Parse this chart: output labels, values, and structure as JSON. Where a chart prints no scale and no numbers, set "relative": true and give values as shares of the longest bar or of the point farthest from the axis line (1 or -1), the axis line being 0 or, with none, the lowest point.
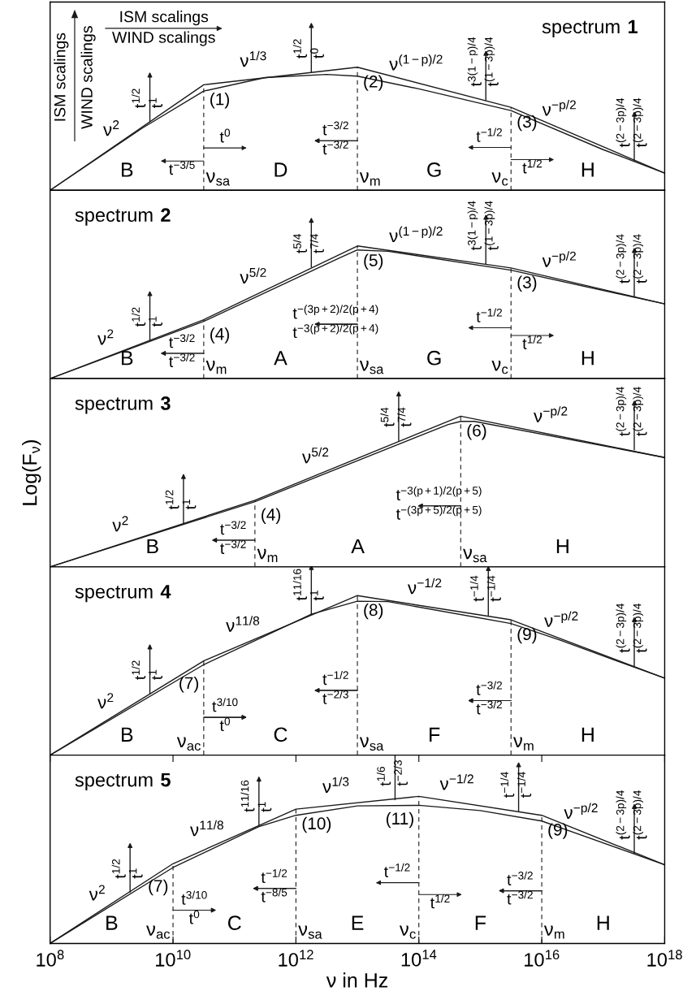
{
  "chart_data": [
    {
      "type": "line",
      "title": "spectrum 1",
      "relative": true,
      "log": "x",
      "xlim": [
        100000000.0,
        1e+18
      ],
      "tick_labels": false,
      "series": [
        {
          "color": "#1a1a1a",
          "x": [
            100000000.0,
            31600000000.0,
            10000000000000.0,
            3160000000000000.0,
            1e+18
          ],
          "values": [
            0,
            0.857,
            1,
            0.674,
            0.139
          ]
        },
        {
          "color": "#1a1a1a",
          "x": [
            100000000.0,
            3160000000.0,
            31600000000.0,
            316000000000.0,
            3160000000000.0,
            10000000000000.0,
            100000000000000.0,
            3160000000000000.0,
            1e+17,
            1e+18
          ],
          "values": [
            0,
            0.505,
            0.806,
            0.916,
            0.941,
            0.927,
            0.824,
            0.648,
            0.33,
            0.139
          ]
        }
      ],
      "ref_lines": [
        {
          "axis": "x",
          "value": 31600000000.0,
          "label": "ν$_{sa}$",
          "line_style": "dashed"
        },
        {
          "axis": "x",
          "value": 10000000000000.0,
          "label": "ν$_{m}$",
          "line_style": "dashed"
        },
        {
          "axis": "x",
          "value": 3160000000000000.0,
          "label": "ν$_{c}$",
          "line_style": "dashed"
        }
      ],
      "annotations": [
        "ISM scalings",
        "WIND scalings",
        "ISM scalings",
        "WIND scalings",
        {
          "text": "ν$^{2}$",
          "x": 1000000000.0,
          "y": 0.343
        },
        {
          "text": "ν$^{1/3}$",
          "x": 204000000000.0,
          "y": 0.903
        },
        {
          "text": "ν$^{(1−p)/2}$",
          "x": 91000000000000.0,
          "y": 0.875
        },
        {
          "text": "ν$^{−p/2}$",
          "x": 1.95e+16,
          "y": 0.505
        },
        {
          "text": "(1)",
          "x": 31600000000.0,
          "y": 0.857
        },
        {
          "text": "(2)",
          "x": 10000000000000.0,
          "y": 1
        },
        {
          "text": "(3)",
          "x": 3160000000000000.0,
          "y": 0.674
        },
        "B",
        "D",
        "G",
        "H",
        {
          "text": "t$^{1/2}$",
          "x": 4200000000.0,
          "y": 0.557
        },
        {
          "text": "t$^{1}$",
          "x": 4200000000.0,
          "y": 0.557
        },
        {
          "text": "t$^{1/2}$",
          "x": 1780000000000.0,
          "y": 0.96
        },
        {
          "text": "t$^{0}$",
          "x": 1780000000000.0,
          "y": 0.96
        },
        {
          "text": "t$^{3(1−p)/4}$",
          "x": 1230000000000000.0,
          "y": 0.733
        },
        {
          "text": "t$^{(1−3p)/4}$",
          "x": 1230000000000000.0,
          "y": 0.733
        },
        {
          "text": "t$^{(2−3p)/4}$",
          "x": 3.2e+17,
          "y": 0.238
        },
        {
          "text": "t$^{(2−3p)/4}$",
          "x": 3.2e+17,
          "y": 0.238
        },
        {
          "text": "t$^{0}$",
          "x": 31600000000.0,
          "y": 0.344
        },
        {
          "text": "t$^{−3/5}$",
          "x": 31600000000.0,
          "y": 0.238
        },
        {
          "text": "t$^{−3/2}$",
          "x": 10000000000000.0,
          "y": 0.403
        },
        {
          "text": "t$^{−3/2}$",
          "x": 10000000000000.0,
          "y": 0.403
        },
        {
          "text": "t$^{−1/2}$",
          "x": 3160000000000000.0,
          "y": 0.348
        },
        {
          "text": "t$^{1/2}$",
          "x": 3160000000000000.0,
          "y": 0.249
        }
      ]
    },
    {
      "type": "line",
      "title": "spectrum 2",
      "relative": true,
      "log": "x",
      "xlim": [
        100000000.0,
        1e+18
      ],
      "tick_labels": false,
      "series": [
        {
          "color": "#1a1a1a",
          "x": [
            100000000.0,
            31600000000.0,
            10000000000000.0,
            3160000000000000.0,
            1e+18
          ],
          "values": [
            0,
            0.444,
            1,
            0.834,
            0.563
          ]
        },
        {
          "color": "#1a1a1a",
          "x": [
            100000000.0,
            31600000000.0,
            5000000000000.0,
            10000000000000.0,
            31600000000000.0,
            3160000000000000.0,
            1e+18
          ],
          "values": [
            0,
            0.431,
            0.908,
            0.97,
            0.96,
            0.817,
            0.563
          ]
        }
      ],
      "ref_lines": [
        {
          "axis": "x",
          "value": 31600000000.0,
          "label": "ν$_{m}$",
          "line_style": "dashed"
        },
        {
          "axis": "x",
          "value": 10000000000000.0,
          "label": "ν$_{sa}$",
          "line_style": "dashed"
        },
        {
          "axis": "x",
          "value": 3160000000000000.0,
          "label": "ν$_{c}$",
          "line_style": "dashed"
        }
      ],
      "annotations": [
        {
          "text": "ν$^{2}$",
          "x": 810000000.0,
          "y": 0.162
        },
        {
          "text": "ν$^{5/2}$",
          "x": 204000000000.0,
          "y": 0.624
        },
        {
          "text": "ν$^{(1−p)/2}$",
          "x": 91000000000000.0,
          "y": 0.936
        },
        {
          "text": "ν$^{−p/2}$",
          "x": 1.95e+16,
          "y": 0.748
        },
        {
          "text": "(4)",
          "x": 31600000000.0,
          "y": 0.444
        },
        {
          "text": "(5)",
          "x": 10000000000000.0,
          "y": 1
        },
        {
          "text": "(3)",
          "x": 3160000000000000.0,
          "y": 0.834
        },
        "B",
        "A",
        "G",
        "H",
        {
          "text": "t$^{1/2}$",
          "x": 4200000000.0,
          "y": 0.288
        },
        {
          "text": "t$^{1}$",
          "x": 4200000000.0,
          "y": 0.288
        },
        {
          "text": "t$^{5/4}$",
          "x": 1780000000000.0,
          "y": 0.841
        },
        {
          "text": "t$^{7/4}$",
          "x": 1780000000000.0,
          "y": 0.841
        },
        {
          "text": "t$^{3(1−p)/4}$",
          "x": 1230000000000000.0,
          "y": 0.864
        },
        {
          "text": "t$^{(1−3p)/4}$",
          "x": 1230000000000000.0,
          "y": 0.864
        },
        {
          "text": "t$^{(2−3p)/4}$",
          "x": 3.2e+17,
          "y": 0.614
        },
        {
          "text": "t$^{(2−3p)/4}$",
          "x": 3.2e+17,
          "y": 0.614
        },
        {
          "text": "t$^{−3/2}$",
          "x": 31600000000.0,
          "y": 0.19
        },
        {
          "text": "t$^{−3/2}$",
          "x": 31600000000.0,
          "y": 0.19
        },
        {
          "text": "t$^{−(3p+2)/2(p+4)}$",
          "x": 10000000000000.0,
          "y": 0.41
        },
        {
          "text": "t$^{−3(p+2)/2(p+4)}$",
          "x": 10000000000000.0,
          "y": 0.41
        },
        {
          "text": "t$^{−1/2}$",
          "x": 3160000000000000.0,
          "y": 0.383
        },
        {
          "text": "t$^{1/2}$",
          "x": 3160000000000000.0,
          "y": 0.325
        }
      ]
    },
    {
      "type": "line",
      "title": "spectrum 3",
      "ylabel": "Log(F$_{ν}$)",
      "relative": true,
      "log": "x",
      "xlim": [
        100000000.0,
        1e+18
      ],
      "tick_labels": false,
      "series": [
        {
          "color": "#1a1a1a",
          "x": [
            100000000.0,
            215000000000.0,
            480000000000000.0,
            1e+18
          ],
          "values": [
            0,
            0.442,
            1,
            0.726
          ]
        },
        {
          "color": "#1a1a1a",
          "x": [
            100000000.0,
            215000000000.0,
            300000000000000.0,
            480000000000000.0,
            800000000000000.0,
            1e+18
          ],
          "values": [
            0,
            0.433,
            0.945,
            0.966,
            0.966,
            0.726
          ]
        }
      ],
      "ref_lines": [
        {
          "axis": "x",
          "value": 215000000000.0,
          "label": "ν$_{m}$",
          "line_style": "dashed"
        },
        {
          "axis": "x",
          "value": 480000000000000.0,
          "label": "ν$_{sa}$",
          "line_style": "dashed"
        }
      ],
      "annotations": [
        {
          "text": "ν$^{2}$",
          "x": 1410000000.0,
          "y": 0.153
        },
        {
          "text": "ν$^{5/2}$",
          "x": 2100000000000.0,
          "y": 0.607
        },
        {
          "text": "ν$^{−p/2}$",
          "x": 1.41e+16,
          "y": 0.879
        },
        {
          "text": "(4)",
          "x": 215000000000.0,
          "y": 0.442
        },
        {
          "text": "(6)",
          "x": 480000000000000.0,
          "y": 1
        },
        "B",
        "A",
        "H",
        {
          "text": "t$^{1/2}$",
          "x": 14800000000.0,
          "y": 0.29
        },
        {
          "text": "t$^{1}$",
          "x": 14800000000.0,
          "y": 0.29
        },
        {
          "text": "t$^{5/4}$",
          "x": 47000000000000.0,
          "y": 0.838
        },
        {
          "text": "t$^{7/4}$",
          "x": 47000000000000.0,
          "y": 0.838
        },
        {
          "text": "t$^{(2−3p)/4}$",
          "x": 3.2e+17,
          "y": 0.777
        },
        {
          "text": "t$^{(2−3p)/4}$",
          "x": 3.2e+17,
          "y": 0.777
        },
        {
          "text": "t$^{−3/2}$",
          "x": 215000000000.0,
          "y": 0.177
        },
        {
          "text": "t$^{−3/2}$",
          "x": 215000000000.0,
          "y": 0.177
        },
        {
          "text": "t$^{−3(p+1)/2(p+5)}$",
          "x": 480000000000000.0,
          "y": 0.405
        },
        {
          "text": "t$^{−(3p+5)/2(p+5)}$",
          "x": 480000000000000.0,
          "y": 0.405
        }
      ]
    },
    {
      "type": "line",
      "title": "spectrum 4",
      "relative": true,
      "log": "x",
      "xlim": [
        100000000.0,
        1e+18
      ],
      "tick_labels": false,
      "series": [
        {
          "color": "#1a1a1a",
          "x": [
            100000000.0,
            31600000000.0,
            10000000000000.0,
            3160000000000000.0,
            1e+18
          ],
          "values": [
            0,
            0.591,
            1,
            0.848,
            0.482
          ]
        },
        {
          "color": "#1a1a1a",
          "x": [
            100000000.0,
            31600000000.0,
            1780000000000.0,
            10000000000000.0,
            31600000000000.0,
            3160000000000000.0,
            2e+16,
            1e+18
          ],
          "values": [
            0,
            0.567,
            0.883,
            0.965,
            0.962,
            0.825,
            0.72,
            0.482
          ]
        }
      ],
      "ref_lines": [
        {
          "axis": "x",
          "value": 31600000000.0,
          "label": "ν$_{ac}$",
          "line_style": "dashed"
        },
        {
          "axis": "x",
          "value": 10000000000000.0,
          "label": "ν$_{sa}$",
          "line_style": "dashed"
        },
        {
          "axis": "x",
          "value": 3160000000000000.0,
          "label": "ν$_{m}$",
          "line_style": "dashed"
        }
      ],
      "annotations": [
        {
          "text": "ν$^{2}$",
          "x": 810000000.0,
          "y": 0.215
        },
        {
          "text": "ν$^{11/8}$",
          "x": 138000000000.0,
          "y": 0.696
        },
        {
          "text": "ν$^{−1/2}$",
          "x": 126000000000000.0,
          "y": 0.933
        },
        {
          "text": "ν$^{−p/2}$",
          "x": 2.1e+16,
          "y": 0.726
        },
        {
          "text": "(7)",
          "x": 31600000000.0,
          "y": 0.591
        },
        {
          "text": "(8)",
          "x": 10000000000000.0,
          "y": 1
        },
        {
          "text": "(9)",
          "x": 3160000000000000.0,
          "y": 0.848
        },
        "B",
        "C",
        "F",
        "H",
        {
          "text": "t$^{1/2}$",
          "x": 4200000000.0,
          "y": 0.386
        },
        {
          "text": "t$^{1}$",
          "x": 4200000000.0,
          "y": 0.386
        },
        {
          "text": "t$^{11/16}$",
          "x": 1780000000000.0,
          "y": 0.883
        },
        {
          "text": "t$^{1}$",
          "x": 1780000000000.0,
          "y": 0.883
        },
        {
          "text": "t$^{−1/4}$",
          "x": 1350000000000000.0,
          "y": 0.877
        },
        {
          "text": "t$^{−1/4}$",
          "x": 1350000000000000.0,
          "y": 0.877
        },
        {
          "text": "t$^{(2−3p)/4}$",
          "x": 3.2e+17,
          "y": 0.556
        },
        {
          "text": "t$^{(2−3p)/4}$",
          "x": 3.2e+17,
          "y": 0.556
        },
        {
          "text": "t$^{3/10}$",
          "x": 31600000000.0,
          "y": 0.237
        },
        {
          "text": "t$^{0}$",
          "x": 31600000000.0,
          "y": 0.237
        },
        {
          "text": "t$^{−1/2}$",
          "x": 10000000000000.0,
          "y": 0.406
        },
        {
          "text": "t$^{−2/3}$",
          "x": 10000000000000.0,
          "y": 0.406
        },
        {
          "text": "t$^{−3/2}$",
          "x": 3160000000000000.0,
          "y": 0.342
        },
        {
          "text": "t$^{−3/2}$",
          "x": 3160000000000000.0,
          "y": 0.342
        }
      ]
    },
    {
      "type": "line",
      "title": "spectrum 5",
      "xlabel": "ν in Hz",
      "relative": true,
      "log": "x",
      "xlim": [
        100000000.0,
        1e+18
      ],
      "xticks": [
        {
          "value": 100000000.0,
          "label": "10$^{8}$"
        },
        {
          "value": 10000000000.0,
          "label": "10$^{10}$"
        },
        {
          "value": 1000000000000.0,
          "label": "10$^{12}$"
        },
        {
          "value": 100000000000000.0,
          "label": "10$^{14}$"
        },
        {
          "value": 1e+16,
          "label": "10$^{16}$"
        },
        {
          "value": 1e+18,
          "label": "10$^{18}$"
        }
      ],
      "series": [
        {
          "color": "#1a1a1a",
          "x": [
            100000000.0,
            10000000000.0,
            1000000000000.0,
            100000000000000.0,
            1e+16,
            1e+18
          ],
          "values": [
            0,
            0.542,
            0.913,
            1,
            0.871,
            0.535
          ]
        },
        {
          "color": "#1a1a1a",
          "x": [
            100000000.0,
            10000000000.0,
            250000000000.0,
            1000000000000.0,
            10000000000000.0,
            100000000000000.0,
            1000000000000000.0,
            1e+16,
            1e+18
          ],
          "values": [
            0,
            0.516,
            0.794,
            0.871,
            0.935,
            0.939,
            0.903,
            0.832,
            0.535
          ]
        }
      ],
      "ref_lines": [
        {
          "axis": "x",
          "value": 10000000000.0,
          "label": "ν$_{ac}$",
          "line_style": "dashed"
        },
        {
          "axis": "x",
          "value": 1000000000000.0,
          "label": "ν$_{sa}$",
          "line_style": "dashed"
        },
        {
          "axis": "x",
          "value": 100000000000000.0,
          "label": "ν$_{c}$",
          "line_style": "dashed"
        },
        {
          "axis": "x",
          "value": 1e+16,
          "label": "ν$_{m}$",
          "line_style": "dashed"
        }
      ],
      "annotations": [
        {
          "text": "ν$^{2}$",
          "x": 590000000.0,
          "y": 0.209
        },
        {
          "text": "ν$^{11/8}$",
          "x": 36000000000.0,
          "y": 0.646
        },
        {
          "text": "ν$^{1/3}$",
          "x": 4500000000000.0,
          "y": 0.941
        },
        {
          "text": "ν$^{−1/2}$",
          "x": 420000000000000.0,
          "y": 0.96
        },
        {
          "text": "ν$^{−p/2}$",
          "x": 4.4e+16,
          "y": 0.763
        },
        {
          "text": "(7)",
          "x": 10000000000.0,
          "y": 0.542
        },
        {
          "text": "(10)",
          "x": 1000000000000.0,
          "y": 0.913
        },
        {
          "text": "(11)",
          "x": 100000000000000.0,
          "y": 1
        },
        {
          "text": "(9)",
          "x": 1e+16,
          "y": 0.871
        },
        "B",
        "C",
        "E",
        "F",
        "H",
        {
          "text": "t$^{1/2}$",
          "x": 2000000000.0,
          "y": 0.348
        },
        {
          "text": "t$^{1}$",
          "x": 2000000000.0,
          "y": 0.348
        },
        {
          "text": "t$^{11/16}$",
          "x": 250000000000.0,
          "y": 0.8
        },
        {
          "text": "t$^{1}$",
          "x": 250000000000.0,
          "y": 0.8
        },
        {
          "text": "t$^{1/6}$",
          "x": 41000000000000.0,
          "y": 0.977
        },
        {
          "text": "t$^{−2/3}$",
          "x": 41000000000000.0,
          "y": 0.977
        },
        {
          "text": "t$^{−1/4}$",
          "x": 4200000000000000.0,
          "y": 0.897
        },
        {
          "text": "t$^{−1/4}$",
          "x": 4200000000000000.0,
          "y": 0.897
        },
        {
          "text": "t$^{(2−3p)/4}$",
          "x": 3.2e+17,
          "y": 0.613
        },
        {
          "text": "t$^{(2−3p)/4}$",
          "x": 3.2e+17,
          "y": 0.613
        },
        {
          "text": "t$^{3/10}$",
          "x": 10000000000.0,
          "y": 0.226
        },
        {
          "text": "t$^{0}$",
          "x": 10000000000.0,
          "y": 0.226
        },
        {
          "text": "t$^{−1/2}$",
          "x": 1000000000000.0,
          "y": 0.374
        },
        {
          "text": "t$^{−8/5}$",
          "x": 1000000000000.0,
          "y": 0.374
        },
        {
          "text": "t$^{−1/2}$",
          "x": 100000000000000.0,
          "y": 0.413
        },
        {
          "text": "t$^{1/2}$",
          "x": 100000000000000.0,
          "y": 0.332
        },
        {
          "text": "t$^{−3/2}$",
          "x": 1e+16,
          "y": 0.358
        },
        {
          "text": "t$^{−3/2}$",
          "x": 1e+16,
          "y": 0.358
        }
      ]
    }
  ]
}
